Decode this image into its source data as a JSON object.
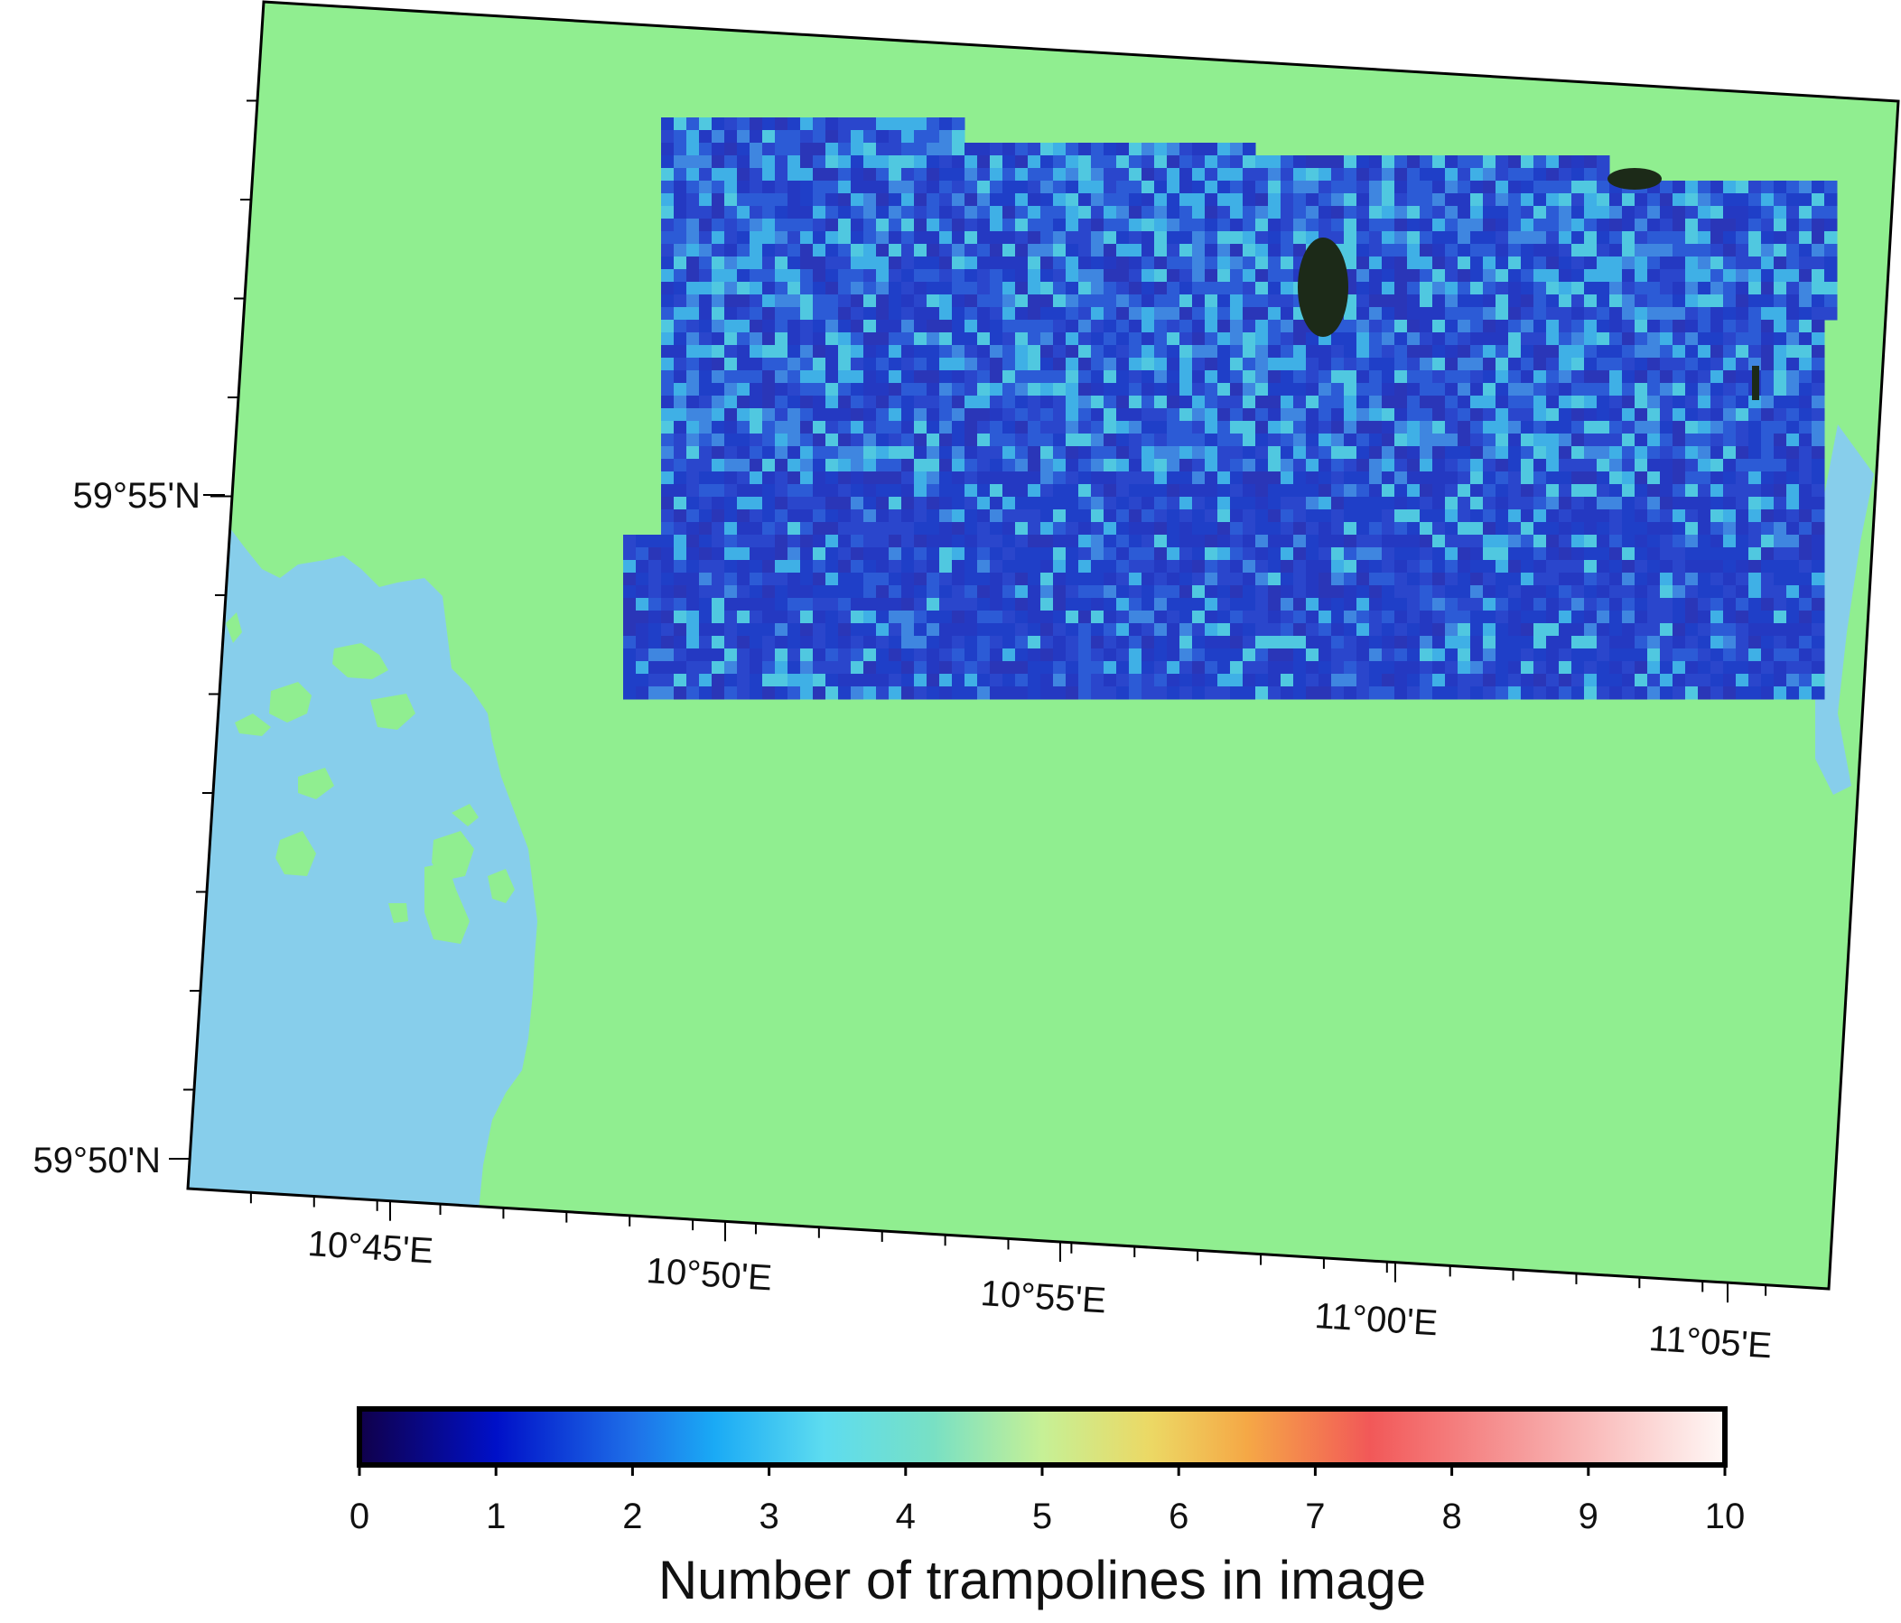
{
  "map": {
    "land_color": "#90ee90",
    "water_color": "#87ceeb",
    "frame_color": "#000000"
  },
  "axes": {
    "lat_labels": [
      "59°55'N",
      "59°50'N"
    ],
    "lon_labels": [
      "10°45'E",
      "10°50'E",
      "10°55'E",
      "11°00'E",
      "11°05'E"
    ]
  },
  "colorbar": {
    "title": "Number of trampolines in image",
    "tick_labels": [
      "0",
      "1",
      "2",
      "3",
      "4",
      "5",
      "6",
      "7",
      "8",
      "9",
      "10"
    ],
    "range": [
      0,
      10
    ],
    "stops": [
      {
        "value": 0,
        "color": "#10004a"
      },
      {
        "value": 1,
        "color": "#0010c8"
      },
      {
        "value": 2,
        "color": "#1e6fe8"
      },
      {
        "value": 2.6,
        "color": "#1aaaf5"
      },
      {
        "value": 3.4,
        "color": "#5ddcf0"
      },
      {
        "value": 4.2,
        "color": "#78e0c4"
      },
      {
        "value": 5,
        "color": "#c6f096"
      },
      {
        "value": 5.8,
        "color": "#ecd864"
      },
      {
        "value": 6.5,
        "color": "#f5a846"
      },
      {
        "value": 7.4,
        "color": "#f25858"
      },
      {
        "value": 8.5,
        "color": "#f69a9a"
      },
      {
        "value": 10,
        "color": "#fff8f6"
      }
    ]
  },
  "grid_icons": {
    "dark_hotspot": "dark-green-patch"
  }
}
